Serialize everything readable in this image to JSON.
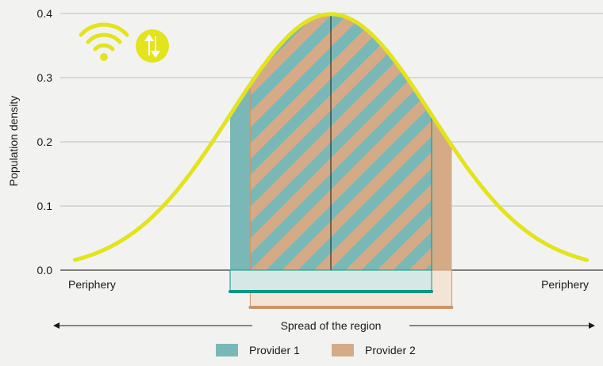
{
  "chart_data": {
    "type": "area",
    "title": "",
    "xlabel": "Spread of the region",
    "ylabel": "Population density",
    "ylim": [
      0,
      0.4
    ],
    "yticks": [
      "0.0",
      "0.1",
      "0.2",
      "0.3",
      "0.4"
    ],
    "x_annotations": {
      "left": "Periphery",
      "right": "Periphery"
    },
    "grid": "horizontal",
    "legend_placement": "bottom-center",
    "curve": {
      "distribution": "normal",
      "mean": 0,
      "sd": 1,
      "x": [
        -3,
        -2.5,
        -2,
        -1.5,
        -1,
        -0.5,
        0,
        0.5,
        1,
        1.5,
        2,
        2.5,
        3
      ],
      "y": [
        0.004,
        0.018,
        0.054,
        0.13,
        0.242,
        0.352,
        0.399,
        0.352,
        0.242,
        0.13,
        0.054,
        0.018,
        0.004
      ],
      "color": "#e3e31e"
    },
    "series": [
      {
        "name": "Provider 1",
        "x_range": [
          -1.0,
          1.0
        ],
        "color": "#7ab8b7",
        "bar_color": "#0f9680"
      },
      {
        "name": "Provider 2",
        "x_range": [
          -0.8,
          1.2
        ],
        "color": "#d4ab86",
        "bar_color": "#c8956b"
      }
    ],
    "center_line_x": 0,
    "colors": {
      "grid": "#b9bebd",
      "axis": "#3b3b3b",
      "icon_fill": "#e3e31e",
      "text": "#1a1a1a"
    }
  },
  "icons": [
    "wifi-icon",
    "data-transfer-icon"
  ]
}
